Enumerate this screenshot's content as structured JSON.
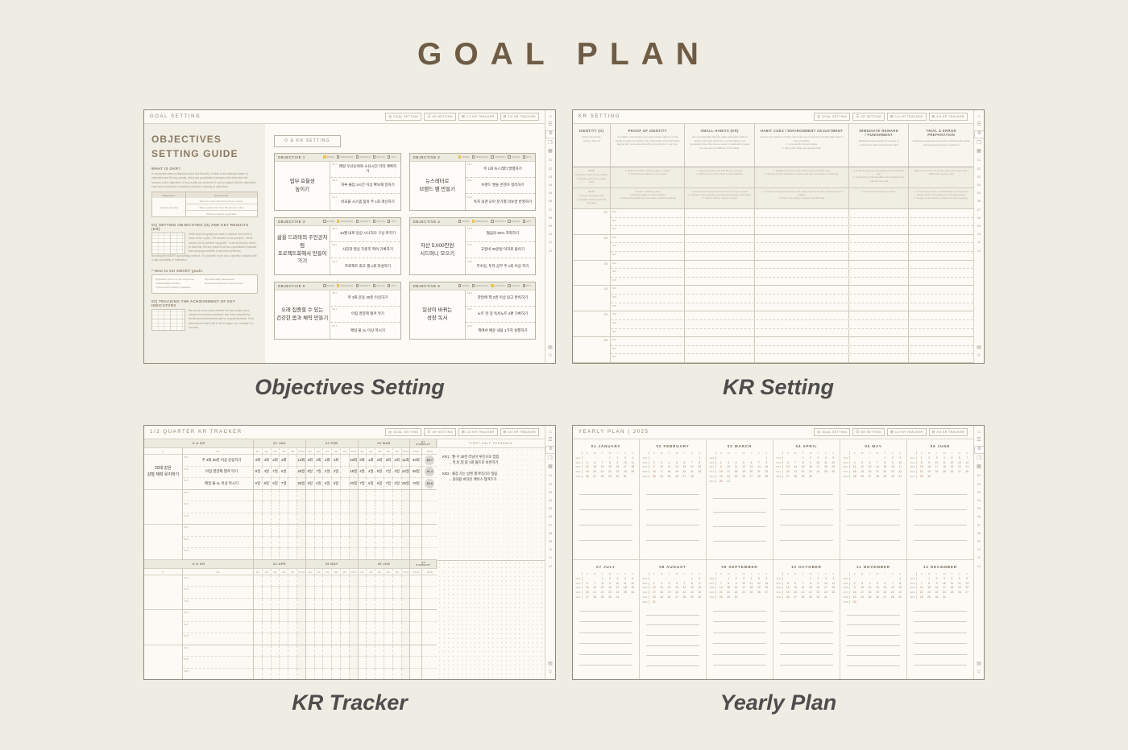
{
  "page": {
    "title": "GOAL PLAN"
  },
  "captions": [
    "Objectives Setting",
    "KR Setting",
    "KR Tracker",
    "Yearly Plan"
  ],
  "colors": {
    "background": "#EFECE3",
    "title_brown": "#6F5C45",
    "panel_bg": "#FBFAF4",
    "header_fill": "#ECE9DE",
    "highlight_yellow": "#F2CE5D",
    "sunday_red": "#BA7D63",
    "handwriting": "#38352f"
  },
  "nav": {
    "buttons": [
      {
        "icon": "goal-setting-icon",
        "glyph": "◎",
        "label": "GOAL SETTING"
      },
      {
        "icon": "kr-setting-icon",
        "glyph": "☰",
        "label": "KR SETTING"
      },
      {
        "icon": "q12-tracker-icon",
        "glyph": "⊞",
        "label": "1/2 KR TRACKER"
      },
      {
        "icon": "q34-tracker-icon",
        "glyph": "⊟",
        "label": "3/4 KR TRACKER"
      }
    ]
  },
  "sidebar": {
    "top": [
      {
        "icon": "home-icon",
        "glyph": "⌂"
      },
      {
        "icon": "index-icon",
        "glyph": "☰"
      },
      {
        "icon": "settings-icon",
        "glyph": "⚙",
        "active": true
      },
      {
        "icon": "tabs-icon",
        "glyph": "❐"
      },
      {
        "icon": "calendar-icon",
        "glyph": "▦"
      }
    ],
    "months": [
      "01",
      "02",
      "03",
      "04",
      "05",
      "06",
      "07",
      "08",
      "09",
      "10",
      "11",
      "12"
    ],
    "bottom": [
      {
        "icon": "memo-page-icon",
        "glyph": "▤"
      },
      {
        "icon": "sticker-icon",
        "glyph": "☺"
      }
    ]
  },
  "objectives_panel": {
    "title": "GOAL SETTING",
    "okr_button": "O & KR SETTING",
    "categories": [
      "WORK",
      "PERSONAL",
      "GROWTH",
      "SOCIAL",
      "ETC."
    ],
    "kr_labels": [
      "KR 1",
      "KR 2",
      "KR 3"
    ],
    "guide": {
      "heading": "OBJECTIVES\nSETTING GUIDE",
      "s1_title": "WHAT IS OKR?",
      "s1_body": "A compound word of Objectives and Key Results, it refers to the ultimate dream of objectives and the key results, which are quantitative indicators that determine the success of the objectives. If key results are achieved, it can be judged that the objectives have been successful, enabling continuous tracking of objectives.",
      "table": {
        "col1": "Objectives",
        "col2": "Key Results",
        "left": "Improve stamina",
        "rows": [
          "Exercise more than three times a week",
          "Take a walk more than 30 minutes a day",
          "Attend a weekly yoga class"
        ]
      },
      "s2_title": "01) SETTING OBJECTIVES (O) AND KEY RESULTS (KR)",
      "s2_body": "Write down six goals you want to achieve and need to focus on for a year. The answer to the question, \"What should I do to achieve my goals?\" is set as the key result. At this time, the key result is set as a quantitative indicator that can judge whether it has been achieved.",
      "s2_body2": "By using the SMART goal setting method, it is possible to set it as a specific indicator with a high possibility of realization.",
      "smart_title": "* How to set SMART goals",
      "smart_items": [
        "S(specific) Focus on the to-do items",
        "M(measurable) Measurable",
        "A(achievable) Possible",
        "R(relevant) Relevant to the purpose",
        "T(time-bound) Setting a deadline"
      ],
      "s3_title": "02) TRACKING THE ACHIEVEMENT OF KEY INDICATORS",
      "s3_body": "We check every week whether the key results set in advance have been achieved, and then calculate the results and achievement rate on a quarterly basis. If the achievement rate is 80 to 90 or higher, we consider it a success."
    },
    "objectives": [
      {
        "num": "OBJECTIVE 1",
        "active": 0,
        "title": "업무 효율성\n높이기",
        "krs": [
          "매일 우선순위와 소요시간 미리 계획하기",
          "하루 몰입 3시간 이상 확보해 일하기",
          "비효율 시스템 찾아 주 1회 개선하기"
        ]
      },
      {
        "num": "OBJECTIVE 2",
        "active": 0,
        "title": "뉴스레터로\n브랜드 팬 만들기",
        "krs": [
          "주 1회 뉴스레터 발행하기",
          "브랜드 쌓을 콘텐츠 정리하기",
          "독자 의견 모아 분기별 리뉴얼 반영하기"
        ]
      },
      {
        "num": "OBJECTIVE 3",
        "active": 1,
        "title": "삶을 드라마의 주인공처럼\n프로젝트화해서 만들어가기",
        "krs": [
          "10월 내로 일상 시나리오 구상 마치기",
          "사진과 영상 꾸준히 찍어 기록하기",
          "프로젝트 회고 월 1회 작성하기"
        ]
      },
      {
        "num": "OBJECTIVE 4",
        "active": 1,
        "title": "자산 5,000만원\n시드머니 모으기",
        "krs": [
          "월급의 50% 저축하기",
          "고정비 30만원 이하로 줄이기",
          "부수입, 투자 공부 주 1회 이상 하기"
        ]
      },
      {
        "num": "OBJECTIVE 5",
        "active": 1,
        "title": "오래 집중할 수 있는\n건강한 몸과 체력 만들기",
        "krs": [
          "주 3회 운동 30분 이상하기",
          "아침 영양제 챙겨 먹기",
          "매일 물 1L 이상 마시기"
        ]
      },
      {
        "num": "OBJECTIVE 6",
        "active": 2,
        "title": "일상이 바뀌는\n성장 독서",
        "krs": [
          "한달에 책 2권 이상 읽고 완독하기",
          "노트 한 장 독서노트 4편 기록하기",
          "책에서 배운 내용 1가지 실행하기"
        ]
      }
    ]
  },
  "kr_setting_panel": {
    "title": "KR SETTING",
    "columns": [
      {
        "title": "IDENTITY (O)",
        "desc": "Define the identity\nI want to become"
      },
      {
        "title": "PROOF OF IDENTITY",
        "desc": "To solidify a new identity you must provide evidence of that identity through your actions. By consistently performing habits aligned with your desired identity, you reinforce it over time."
      },
      {
        "title": "SMALL HABITS (KR)",
        "desc": "List up small habits that are easily achievable within 2 minutes each day. At this time, set the habits to be repeatable (more than once a week) or gradually increase the intensity and difficulty of the habits."
      },
      {
        "title": "HABIT CUES / ENVIRONMENT ADJUSTMENT",
        "desc": "Set low entry barriers of habits and create an environment of habits that makes it easy to practice\n1. At a specific time and place\n2. Along with habits you already finish"
      },
      {
        "title": "IMMEDIATE REWARD\n/ PUNISHMENT",
        "desc": "Establish reward system for a sense of achievement after practicing the habit"
      },
      {
        "title": "TRIAL & ERROR PREPARATION",
        "desc": "Anticipate unexpected errors when practicing the habits and prepare responses in advance"
      }
    ],
    "examples": [
      {
        "row": "EX ①",
        "identity": "A bookworm who communicates knowledge gained by reading habit",
        "cells": [
          "1. Read more than 1 different genre of books\n2. Writing book reflection once a week",
          "1. Read books for more than 30 min everyday\n2. Write up more than 3 lines of book reflection",
          "1. Reading the books when leaving home and after work\n2. Writing up book reflection at a study cafe after my workout on Saturday",
          "1. Finish the page he was reading to download the rate\n2. Introducing my favorite drink when writing a book reflection at a cafe",
          "When I don't make my set time seriously, bring it with a habit before going to bed"
        ]
      },
      {
        "row": "EX ②",
        "identity": "A person with high brand recognition through personal branding",
        "cells": [
          "1. Reach 1,000 blog views\n2. BeTube beginner content creator\n3. Selling and publishing of expertise & share knowledge",
          "1. Write at least 30 minutes content 1h of 3 days a week\n2. Upload a video regarding personal development every week\n3. Study 2 famous creators a week",
          "1. Jot down my blog ideas at home and upload them on Monday, Wednesday and Fridays\n2. Post a video saying \"Upload every Monday\"",
          "3. 10 points for watching a lecture",
          "1. If I can't post a video on Wednesday in a busy week, always write it on Tuesday and Thursday instead\n2. Create 2 extra videos in advance for an emergency"
        ]
      }
    ],
    "o_labels": [
      "O1",
      "O2",
      "O3",
      "O4",
      "O5",
      "O6"
    ],
    "kr_labels": [
      "KR1",
      "KR2",
      "KR3"
    ]
  },
  "kr_tracker_panel": {
    "title": "1/2 QUARTER KR TRACKER",
    "okr_header": "O & KR",
    "o_col": "O",
    "kr_col": "KR",
    "weeks": [
      "W1",
      "W2",
      "W3",
      "W4",
      "W5",
      "TOTAL"
    ],
    "sum_cols": [
      "TOTAL",
      "RATE"
    ],
    "kr_row_labels": [
      "KR1",
      "KR2",
      "KR3"
    ],
    "q1": {
      "months": [
        "01 JAN",
        "02 FEB",
        "03 MAR"
      ],
      "summary": "Q1\nSUMMARY"
    },
    "q2": {
      "months": [
        "04 APR",
        "05 MAY",
        "06 JUN"
      ],
      "summary": "Q2\nSUMMARY"
    },
    "feedback_header": "FIRST HALF FEEDBACK",
    "entry": {
      "objective": "20대 같은\n강철 체력 유지하기",
      "rows": [
        {
          "kr": "주 3회 30분 이상 운동하기",
          "vals": [
            [
              "3회",
              "4회",
              "2회",
              "3회",
              "",
              "12회"
            ],
            [
              "2회",
              "2회",
              "2회",
              "4회",
              "",
              "10회"
            ],
            [
              "3회",
              "1회",
              "2회",
              "3회",
              "2회",
              "11회"
            ]
          ],
          "sum": [
            "33회",
            "86.7"
          ]
        },
        {
          "kr": "아침 영양제 챙겨 먹기",
          "vals": [
            [
              "8일",
              "4일",
              "7일",
              "6일",
              "",
              "25일"
            ],
            [
              "8일",
              "7일",
              "2일",
              "2일",
              "",
              "19일"
            ],
            [
              "4일",
              "4일",
              "5일",
              "7일",
              "4일",
              "24일"
            ]
          ],
          "sum": [
            "68일",
            "91.4"
          ]
        },
        {
          "kr": "매일 물 1L 이상 마시기",
          "vals": [
            [
              "6일",
              "8일",
              "5일",
              "7일",
              "",
              "26일"
            ],
            [
              "6일",
              "6일",
              "6일",
              "5일",
              "",
              "23일"
            ],
            [
              "7일",
              "6일",
              "6일",
              "7일",
              "3일",
              "29일"
            ]
          ],
          "sum": [
            "78일",
            "84.6"
          ]
        }
      ]
    },
    "feedback": [
      {
        "label": "KR1 :",
        "line1": "월·수 30분 러닝이 루틴으로 잡힘",
        "line2": "→ 목,토,일 중 1회 홈트로 보완하기"
      },
      {
        "label": "KR2 :",
        "line1": "출장 가는 날엔 챙겨먹기가 밀림",
        "line2": "→ 휴대용 비타민 케이스 챙겨두기"
      }
    ]
  },
  "yearly_panel": {
    "title": "YEARLY PLAN | 2025",
    "dow": [
      "S",
      "M",
      "T",
      "W",
      "T",
      "F",
      "S"
    ],
    "months": [
      {
        "num": "01",
        "name": "JANUARY",
        "start": 3,
        "days": 31,
        "doy": 0
      },
      {
        "num": "02",
        "name": "FEBRUARY",
        "start": 6,
        "days": 28,
        "doy": 31
      },
      {
        "num": "03",
        "name": "MARCH",
        "start": 6,
        "days": 31,
        "doy": 59
      },
      {
        "num": "04",
        "name": "APRIL",
        "start": 2,
        "days": 30,
        "doy": 90
      },
      {
        "num": "05",
        "name": "MAY",
        "start": 4,
        "days": 31,
        "doy": 120
      },
      {
        "num": "06",
        "name": "JUNE",
        "start": 0,
        "days": 30,
        "doy": 151
      },
      {
        "num": "07",
        "name": "JULY",
        "start": 2,
        "days": 31,
        "doy": 181
      },
      {
        "num": "08",
        "name": "AUGUST",
        "start": 5,
        "days": 31,
        "doy": 212
      },
      {
        "num": "09",
        "name": "SEPTEMBER",
        "start": 1,
        "days": 30,
        "doy": 243
      },
      {
        "num": "10",
        "name": "OCTOBER",
        "start": 3,
        "days": 31,
        "doy": 273
      },
      {
        "num": "11",
        "name": "NOVEMBER",
        "start": 6,
        "days": 30,
        "doy": 304
      },
      {
        "num": "12",
        "name": "DECEMBER",
        "start": 1,
        "days": 31,
        "doy": 334
      }
    ]
  }
}
